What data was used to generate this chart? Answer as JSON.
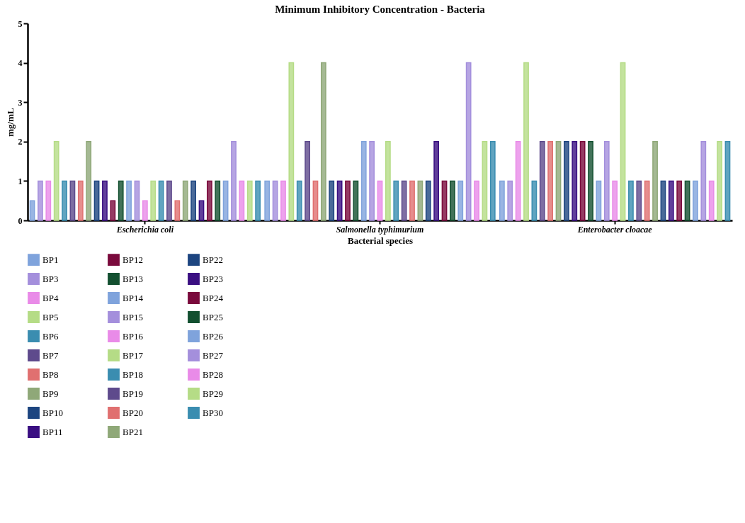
{
  "chart_data": {
    "type": "bar",
    "title": "Minimum Inhibitory Concentration - Bacteria",
    "xlabel": "Bacterial species",
    "ylabel": "mg/mL",
    "categories": [
      "Escherichia coli",
      "Salmonella typhimurium",
      "Enterobacter cloacae"
    ],
    "ylim": [
      0,
      5
    ],
    "yticks": [
      0,
      1,
      2,
      3,
      4,
      5
    ],
    "grid": false,
    "legend": "bottom",
    "series": [
      {
        "name": "BP1",
        "color": "#7fa3dc",
        "values": [
          0.5,
          1,
          1
        ]
      },
      {
        "name": "BP3",
        "color": "#a48fdc",
        "values": [
          1,
          1,
          1
        ]
      },
      {
        "name": "BP4",
        "color": "#e98be8",
        "values": [
          1,
          1,
          2
        ]
      },
      {
        "name": "BP5",
        "color": "#b5dc86",
        "values": [
          2,
          4,
          4
        ]
      },
      {
        "name": "BP6",
        "color": "#3a8db0",
        "values": [
          1,
          1,
          1
        ]
      },
      {
        "name": "BP7",
        "color": "#5e4a8c",
        "values": [
          1,
          2,
          2
        ]
      },
      {
        "name": "BP8",
        "color": "#e07070",
        "values": [
          1,
          1,
          2
        ]
      },
      {
        "name": "BP9",
        "color": "#8fa878",
        "values": [
          2,
          4,
          2
        ]
      },
      {
        "name": "BP10",
        "color": "#1d4580",
        "values": [
          1,
          1,
          2
        ]
      },
      {
        "name": "BP11",
        "color": "#3a0f82",
        "values": [
          1,
          1,
          2
        ]
      },
      {
        "name": "BP12",
        "color": "#7a0a3c",
        "values": [
          0.5,
          1,
          2
        ]
      },
      {
        "name": "BP13",
        "color": "#135030",
        "values": [
          1,
          1,
          2
        ]
      },
      {
        "name": "BP14",
        "color": "#7fa3dc",
        "values": [
          1,
          2,
          1
        ]
      },
      {
        "name": "BP15",
        "color": "#a48fdc",
        "values": [
          1,
          2,
          2
        ]
      },
      {
        "name": "BP16",
        "color": "#e98be8",
        "values": [
          0.5,
          1,
          1
        ]
      },
      {
        "name": "BP17",
        "color": "#b5dc86",
        "values": [
          1,
          2,
          4
        ]
      },
      {
        "name": "BP18",
        "color": "#3a8db0",
        "values": [
          1,
          1,
          1
        ]
      },
      {
        "name": "BP19",
        "color": "#5e4a8c",
        "values": [
          1,
          1,
          1
        ]
      },
      {
        "name": "BP20",
        "color": "#e07070",
        "values": [
          0.5,
          1,
          1
        ]
      },
      {
        "name": "BP21",
        "color": "#8fa878",
        "values": [
          1,
          1,
          2
        ]
      },
      {
        "name": "BP22",
        "color": "#1d4580",
        "values": [
          1,
          1,
          1
        ]
      },
      {
        "name": "BP23",
        "color": "#3a0f82",
        "values": [
          0.5,
          2,
          1
        ]
      },
      {
        "name": "BP24",
        "color": "#7a0a3c",
        "values": [
          1,
          1,
          1
        ]
      },
      {
        "name": "BP25",
        "color": "#135030",
        "values": [
          1,
          1,
          1
        ]
      },
      {
        "name": "BP26",
        "color": "#7fa3dc",
        "values": [
          1,
          1,
          1
        ]
      },
      {
        "name": "BP27",
        "color": "#a48fdc",
        "values": [
          2,
          4,
          2
        ]
      },
      {
        "name": "BP28",
        "color": "#e98be8",
        "values": [
          1,
          1,
          1
        ]
      },
      {
        "name": "BP29",
        "color": "#b5dc86",
        "values": [
          1,
          2,
          2
        ]
      },
      {
        "name": "BP30",
        "color": "#3a8db0",
        "values": [
          1,
          2,
          2
        ]
      }
    ]
  }
}
